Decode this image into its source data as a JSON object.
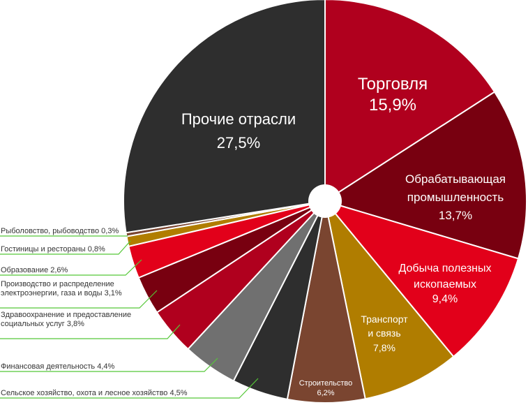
{
  "chart_data": {
    "type": "pie",
    "style": "donut with small center hole",
    "start_angle": "top, clockwise",
    "leader_line_color": "#55c838",
    "slices": [
      {
        "label": "Торговля",
        "lines": [
          "Торговля"
        ],
        "value": 15.9,
        "value_label": "15,9%",
        "color": "#b0001e"
      },
      {
        "label": "Обрабатывающая промышленность",
        "lines": [
          "Обрабатывающая",
          "промышленность"
        ],
        "value": 13.7,
        "value_label": "13,7%",
        "color": "#780010"
      },
      {
        "label": "Добыча полезных ископаемых",
        "lines": [
          "Добыча полезных",
          "ископаемых"
        ],
        "value": 9.4,
        "value_label": "9,4%",
        "color": "#e2001a"
      },
      {
        "label": "Транспорт и связь",
        "lines": [
          "Транспорт",
          "и связь"
        ],
        "value": 7.8,
        "value_label": "7,8%",
        "color": "#b07d00"
      },
      {
        "label": "Строительство",
        "lines": [
          "Строительство"
        ],
        "value": 6.2,
        "value_label": "6,2%",
        "color": "#7a4530"
      },
      {
        "label": "Сельское хозяйство, охота и лесное хозяйство",
        "lines": [
          "Сельское хозяйство, охота и лесное хозяйство 4,5%"
        ],
        "value": 4.5,
        "value_label": "4,5%",
        "color": "#2e2e2e"
      },
      {
        "label": "Финансовая деятельность",
        "lines": [
          "Финансовая деятельность 4,4%"
        ],
        "value": 4.4,
        "value_label": "4,4%",
        "color": "#707070"
      },
      {
        "label": "Здравоохранение и предоставление социальных услуг",
        "lines": [
          "Здравоохранение и предоставление",
          "социальных услуг 3,8%"
        ],
        "value": 3.8,
        "value_label": "3,8%",
        "color": "#b0001e"
      },
      {
        "label": "Производство и распределение электроэнергии, газа и воды",
        "lines": [
          "Производство и распределение",
          "электроэнергии, газа и воды 3,1%"
        ],
        "value": 3.1,
        "value_label": "3,1%",
        "color": "#780010"
      },
      {
        "label": "Образование",
        "lines": [
          "Образование 2,6%"
        ],
        "value": 2.6,
        "value_label": "2,6%",
        "color": "#e2001a"
      },
      {
        "label": "Гостиницы и рестораны",
        "lines": [
          "Гостиницы и рестораны 0,8%"
        ],
        "value": 0.8,
        "value_label": "0,8%",
        "color": "#b07d00"
      },
      {
        "label": "Рыболовство, рыбоводство",
        "lines": [
          "Рыболовство, рыбоводство 0,3%"
        ],
        "value": 0.3,
        "value_label": "0,3%",
        "color": "#7a4530"
      },
      {
        "label": "Прочие отрасли",
        "lines": [
          "Прочие отрасли"
        ],
        "value": 27.5,
        "value_label": "27,5%",
        "color": "#2e2e2e"
      }
    ]
  }
}
